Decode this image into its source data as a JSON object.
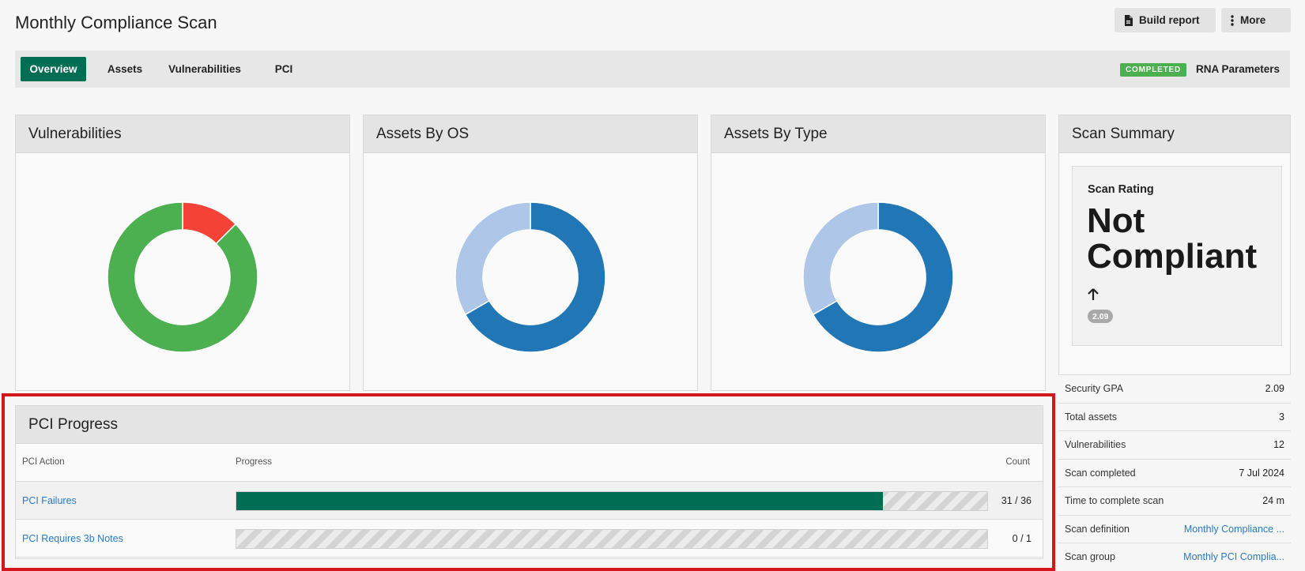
{
  "page": {
    "title": "Monthly Compliance Scan"
  },
  "toolbar": {
    "build_report_label": "Build report",
    "more_label": "More"
  },
  "tabs": [
    {
      "label": "Overview",
      "active": true
    },
    {
      "label": "Assets",
      "active": false
    },
    {
      "label": "Vulnerabilities",
      "active": false
    },
    {
      "label": "PCI",
      "active": false
    }
  ],
  "status": {
    "badge": "COMPLETED",
    "badge_color": "#4caf50",
    "params_label": "RNA Parameters"
  },
  "colors": {
    "accent": "#006e52",
    "link": "#2a7ac6",
    "highlight": "#d4171d"
  },
  "cards": {
    "vulnerabilities": {
      "title": "Vulnerabilities"
    },
    "assets_by_os": {
      "title": "Assets By OS"
    },
    "assets_by_type": {
      "title": "Assets By Type"
    },
    "scan_summary": {
      "title": "Scan Summary"
    }
  },
  "chart_data": [
    {
      "type": "pie",
      "title": "Vulnerabilities",
      "values": [
        0.125,
        0.875
      ],
      "colors": [
        "#f44336",
        "#4caf50"
      ]
    },
    {
      "type": "pie",
      "title": "Assets By OS",
      "values": [
        0.667,
        0.333
      ],
      "colors": [
        "#2176b5",
        "#aec7e8"
      ]
    },
    {
      "type": "pie",
      "title": "Assets By Type",
      "values": [
        0.667,
        0.333
      ],
      "colors": [
        "#2176b5",
        "#aec7e8"
      ]
    }
  ],
  "rating": {
    "label": "Scan Rating",
    "value": "Not Compliant",
    "gpa_badge": "2.09",
    "trend_icon": "arrow-up-icon"
  },
  "summary": [
    {
      "label": "Security GPA",
      "value": "2.09",
      "link": false
    },
    {
      "label": "Total assets",
      "value": "3",
      "link": false
    },
    {
      "label": "Vulnerabilities",
      "value": "12",
      "link": false
    },
    {
      "label": "Scan completed",
      "value": "7 Jul 2024",
      "link": false
    },
    {
      "label": "Time to complete scan",
      "value": "24 m",
      "link": false
    },
    {
      "label": "Scan definition",
      "value": "Monthly Compliance ...",
      "link": true
    },
    {
      "label": "Scan group",
      "value": "Monthly PCI Complia...",
      "link": true
    }
  ],
  "pci": {
    "title": "PCI Progress",
    "columns": {
      "action": "PCI Action",
      "progress": "Progress",
      "count": "Count"
    },
    "rows": [
      {
        "action": "PCI Failures",
        "count": "31 / 36",
        "fraction": 0.861
      },
      {
        "action": "PCI Requires 3b Notes",
        "count": "0 / 1",
        "fraction": 0
      }
    ]
  }
}
